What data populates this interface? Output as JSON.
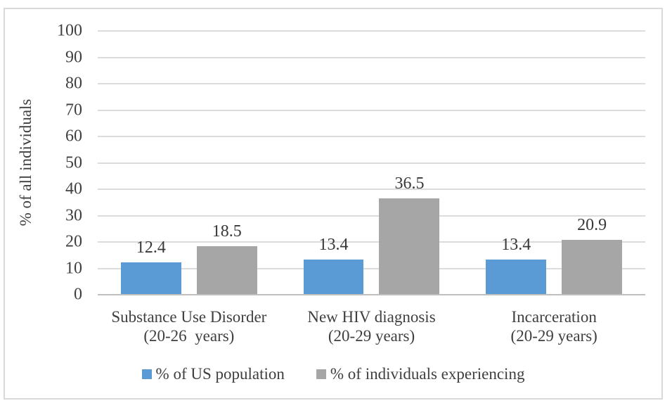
{
  "chart_data": {
    "type": "bar",
    "title": "",
    "ylabel": "% of all individuals",
    "xlabel": "",
    "ylim": [
      0,
      100
    ],
    "yticks": [
      0,
      10,
      20,
      30,
      40,
      50,
      60,
      70,
      80,
      90,
      100
    ],
    "grid": true,
    "data_labels": true,
    "legend_position": "bottom",
    "categories": [
      {
        "label": "Substance Use Disorder",
        "sub": "(20-26  years)"
      },
      {
        "label": "New HIV diagnosis",
        "sub": "(20-29 years)"
      },
      {
        "label": "Incarceration",
        "sub": "(20-29 years)"
      }
    ],
    "series": [
      {
        "name": "% of US population",
        "color": "#5B9BD5",
        "values": [
          12.4,
          13.4,
          13.4
        ]
      },
      {
        "name": "% of individuals experiencing",
        "color": "#A6A6A6",
        "values": [
          18.5,
          36.5,
          20.9
        ]
      }
    ],
    "colors": {
      "gridline": "#DCDCDC",
      "axis_line": "#BFBFBF",
      "text": "#3F3F3F",
      "frame_border": "#D9D9D9"
    }
  }
}
